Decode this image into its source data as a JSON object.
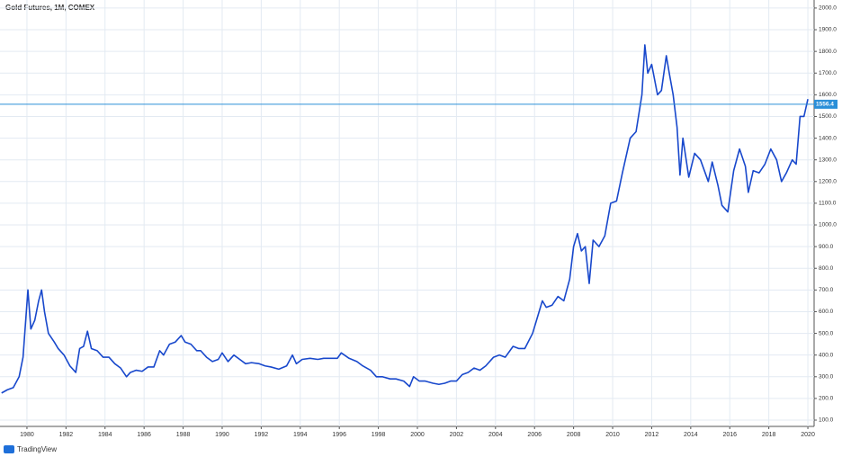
{
  "chart_data": {
    "type": "line",
    "title": "Gold Futures, 1M, COMEX",
    "source": "TradingView",
    "x": [
      1978.7,
      1979.0,
      1979.3,
      1979.6,
      1979.8,
      1980.05,
      1980.2,
      1980.4,
      1980.6,
      1980.75,
      1980.9,
      1981.1,
      1981.4,
      1981.6,
      1981.9,
      1982.2,
      1982.5,
      1982.7,
      1982.9,
      1983.1,
      1983.3,
      1983.6,
      1983.9,
      1984.2,
      1984.5,
      1984.8,
      1985.1,
      1985.3,
      1985.6,
      1985.9,
      1986.2,
      1986.5,
      1986.8,
      1987.0,
      1987.3,
      1987.6,
      1987.9,
      1988.1,
      1988.4,
      1988.7,
      1988.9,
      1989.2,
      1989.5,
      1989.8,
      1990.0,
      1990.3,
      1990.6,
      1990.9,
      1991.2,
      1991.5,
      1991.9,
      1992.2,
      1992.5,
      1992.9,
      1993.3,
      1993.6,
      1993.8,
      1994.1,
      1994.5,
      1994.9,
      1995.2,
      1995.6,
      1995.9,
      1996.1,
      1996.5,
      1996.9,
      1997.2,
      1997.6,
      1997.9,
      1998.2,
      1998.6,
      1998.9,
      1999.3,
      1999.6,
      1999.8,
      2000.1,
      2000.4,
      2000.8,
      2001.1,
      2001.4,
      2001.7,
      2002.0,
      2002.3,
      2002.6,
      2002.9,
      2003.2,
      2003.5,
      2003.9,
      2004.2,
      2004.5,
      2004.9,
      2005.2,
      2005.5,
      2005.9,
      2006.1,
      2006.4,
      2006.6,
      2006.9,
      2007.2,
      2007.5,
      2007.8,
      2008.0,
      2008.2,
      2008.4,
      2008.6,
      2008.8,
      2009.0,
      2009.3,
      2009.6,
      2009.9,
      2010.2,
      2010.5,
      2010.9,
      2011.2,
      2011.5,
      2011.65,
      2011.8,
      2012.0,
      2012.3,
      2012.5,
      2012.75,
      2012.9,
      2013.1,
      2013.3,
      2013.45,
      2013.6,
      2013.9,
      2014.2,
      2014.5,
      2014.9,
      2015.1,
      2015.4,
      2015.6,
      2015.9,
      2016.2,
      2016.5,
      2016.8,
      2016.95,
      2017.2,
      2017.5,
      2017.8,
      2018.1,
      2018.4,
      2018.65,
      2018.9,
      2019.2,
      2019.4,
      2019.6,
      2019.8,
      2020.0
    ],
    "series": [
      {
        "name": "Gold Futures",
        "color": "#1848cc",
        "values": [
          225,
          240,
          250,
          300,
          390,
          700,
          520,
          560,
          650,
          700,
          600,
          500,
          460,
          430,
          400,
          350,
          320,
          430,
          440,
          510,
          430,
          420,
          390,
          390,
          360,
          340,
          300,
          320,
          330,
          325,
          345,
          345,
          420,
          400,
          450,
          460,
          490,
          460,
          450,
          420,
          420,
          390,
          370,
          380,
          410,
          370,
          400,
          380,
          360,
          365,
          360,
          350,
          345,
          335,
          350,
          400,
          360,
          380,
          385,
          380,
          385,
          385,
          385,
          410,
          385,
          370,
          350,
          330,
          300,
          300,
          290,
          290,
          280,
          255,
          300,
          280,
          280,
          270,
          265,
          270,
          280,
          280,
          310,
          320,
          340,
          330,
          350,
          390,
          400,
          390,
          440,
          430,
          430,
          500,
          560,
          650,
          620,
          630,
          670,
          650,
          750,
          900,
          960,
          880,
          900,
          730,
          930,
          900,
          950,
          1100,
          1110,
          1240,
          1400,
          1430,
          1600,
          1830,
          1700,
          1740,
          1600,
          1620,
          1780,
          1700,
          1600,
          1450,
          1230,
          1400,
          1220,
          1330,
          1300,
          1200,
          1290,
          1180,
          1090,
          1060,
          1250,
          1350,
          1270,
          1150,
          1250,
          1240,
          1280,
          1350,
          1300,
          1200,
          1240,
          1300,
          1280,
          1500,
          1500,
          1580
        ]
      }
    ],
    "price_line": 1556.4,
    "xlim": [
      1978.62,
      2020.32
    ],
    "xticks": [
      1980,
      1982,
      1984,
      1986,
      1988,
      1990,
      1992,
      1994,
      1996,
      1998,
      2000,
      2002,
      2004,
      2006,
      2008,
      2010,
      2012,
      2014,
      2016,
      2018,
      2020
    ],
    "ylim": [
      71,
      2037
    ],
    "yticks": [
      {
        "value": 100,
        "label": "100.0"
      },
      {
        "value": 200,
        "label": "200.0"
      },
      {
        "value": 300,
        "label": "300.0"
      },
      {
        "value": 400,
        "label": "400.0"
      },
      {
        "value": 500,
        "label": "500.0"
      },
      {
        "value": 600,
        "label": "600.0"
      },
      {
        "value": 700,
        "label": "700.0"
      },
      {
        "value": 800,
        "label": "800.0"
      },
      {
        "value": 900,
        "label": "900.0"
      },
      {
        "value": 1000,
        "label": "1000.0"
      },
      {
        "value": 1100,
        "label": "1100.0"
      },
      {
        "value": 1200,
        "label": "1200.0"
      },
      {
        "value": 1300,
        "label": "1300.0"
      },
      {
        "value": 1400,
        "label": "1400.0"
      },
      {
        "value": 1500,
        "label": "1500.0"
      },
      {
        "value": 1600,
        "label": "1600.0"
      },
      {
        "value": 1700,
        "label": "1700.0"
      },
      {
        "value": 1800,
        "label": "1800.0"
      },
      {
        "value": 1900,
        "label": "1900.0"
      },
      {
        "value": 2000,
        "label": "2000.0"
      }
    ],
    "grid": true
  }
}
